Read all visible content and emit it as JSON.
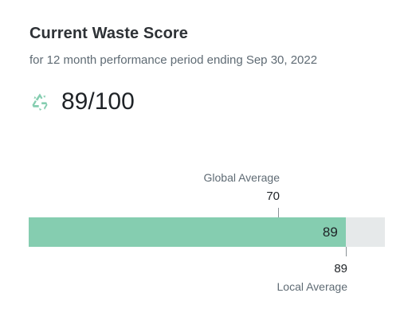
{
  "card": {
    "title": "Current Waste Score",
    "subtitle": "for 12 month performance period ending Sep 30, 2022",
    "score_text": "89/100",
    "icon": "recycle-icon"
  },
  "bar": {
    "min": 0,
    "max": 100,
    "value": 89,
    "value_label": "89",
    "fill_color": "#85cdb0",
    "track_color": "#e6e9ea"
  },
  "markers": {
    "global": {
      "label": "Global Average",
      "value": 70,
      "value_label": "70"
    },
    "local": {
      "label": "Local Average",
      "value": 89,
      "value_label": "89"
    }
  }
}
